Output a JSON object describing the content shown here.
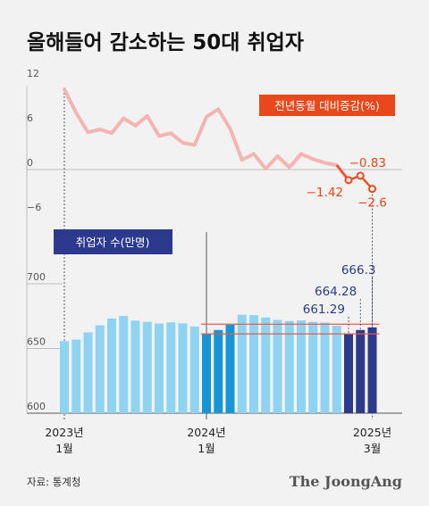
{
  "title": "올해들어 감소하는 50대 취업자",
  "source": "자료: 통계청",
  "brand": "The JoongAng",
  "colors": {
    "line": "#f5b4b0",
    "line_recent": "#e8481c",
    "bar_light": "#8fd3f3",
    "bar_mid": "#1696d6",
    "bar_dark": "#2b3a8c",
    "ref_line": "#e85a4a"
  },
  "chart_data": [
    {
      "type": "line",
      "legend": "전년동월 대비증감(%)",
      "ylim": [
        -6,
        12
      ],
      "yticks": [
        12,
        6,
        0,
        -6
      ],
      "grid": false,
      "x": [
        "2023-01",
        "2023-02",
        "2023-03",
        "2023-04",
        "2023-05",
        "2023-06",
        "2023-07",
        "2023-08",
        "2023-09",
        "2023-10",
        "2023-11",
        "2023-12",
        "2024-01",
        "2024-02",
        "2024-03",
        "2024-04",
        "2024-05",
        "2024-06",
        "2024-07",
        "2024-08",
        "2024-09",
        "2024-10",
        "2024-11",
        "2024-12",
        "2025-01",
        "2025-02",
        "2025-03"
      ],
      "values": [
        10.8,
        7.6,
        5.0,
        5.4,
        4.9,
        6.9,
        5.9,
        7.2,
        4.5,
        4.9,
        3.6,
        3.3,
        7.1,
        8.1,
        5.5,
        1.3,
        2.1,
        0.1,
        1.8,
        0.3,
        2.1,
        1.4,
        0.9,
        0.6,
        -1.42,
        -0.83,
        -2.6
      ],
      "labels": [
        {
          "index": 24,
          "text": "−1.42"
        },
        {
          "index": 25,
          "text": "−0.83"
        },
        {
          "index": 26,
          "text": "−2.6"
        }
      ]
    },
    {
      "type": "bar",
      "legend": "취업자 수(만명)",
      "ylim": [
        600,
        700
      ],
      "yticks": [
        700,
        650,
        600
      ],
      "grid": false,
      "x": [
        "2023-01",
        "2023-02",
        "2023-03",
        "2023-04",
        "2023-05",
        "2023-06",
        "2023-07",
        "2023-08",
        "2023-09",
        "2023-10",
        "2023-11",
        "2023-12",
        "2024-01",
        "2024-02",
        "2024-03",
        "2024-04",
        "2024-05",
        "2024-06",
        "2024-07",
        "2024-08",
        "2024-09",
        "2024-10",
        "2024-11",
        "2024-12",
        "2025-01",
        "2025-02",
        "2025-03"
      ],
      "values": [
        655.6,
        656.9,
        662.5,
        667.9,
        673.2,
        675.1,
        671.5,
        670.6,
        669.3,
        670.2,
        669.4,
        667.0,
        661.29,
        664.28,
        668.3,
        676.1,
        675.8,
        674.0,
        672.1,
        671.3,
        671.7,
        670.6,
        670.0,
        667.5,
        661.29,
        664.28,
        666.3
      ],
      "labels": [
        {
          "index": 24,
          "text": "661.29"
        },
        {
          "index": 25,
          "text": "664.28"
        },
        {
          "index": 26,
          "text": "666.3"
        }
      ],
      "reference_lines": [
        661.29,
        668.8
      ]
    }
  ],
  "x_labels": [
    {
      "index": 0,
      "year": "2023년",
      "month": "1월"
    },
    {
      "index": 12,
      "year": "2024년",
      "month": "1월"
    },
    {
      "index": 26,
      "year": "2025년",
      "month": "3월"
    }
  ]
}
